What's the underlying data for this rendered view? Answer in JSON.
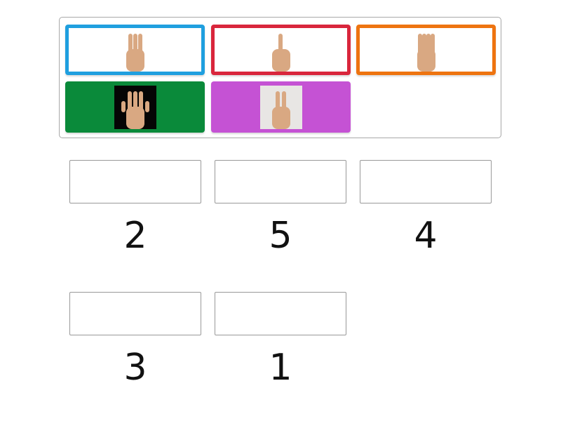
{
  "tiles": [
    {
      "id": "three-fingers",
      "fingers": 3,
      "style": "outline",
      "color": "#1f9fdf",
      "image_bg": "#ffffff"
    },
    {
      "id": "one-finger",
      "fingers": 1,
      "style": "outline",
      "color": "#d9263c",
      "image_bg": "#ffffff"
    },
    {
      "id": "four-fingers",
      "fingers": 4,
      "style": "outline",
      "color": "#ee7410",
      "image_bg": "#ffffff"
    },
    {
      "id": "five-fingers",
      "fingers": 5,
      "style": "filled",
      "color": "#0a8a3a",
      "image_bg": "#050505"
    },
    {
      "id": "two-fingers",
      "fingers": 2,
      "style": "filled",
      "color": "#c552d4",
      "image_bg": "#e8e6e4"
    }
  ],
  "targets": [
    {
      "label": "2"
    },
    {
      "label": "5"
    },
    {
      "label": "4"
    },
    {
      "label": "3"
    },
    {
      "label": "1"
    }
  ],
  "colors": {
    "skin": "#d9a882",
    "border": "#a8a8a8"
  }
}
